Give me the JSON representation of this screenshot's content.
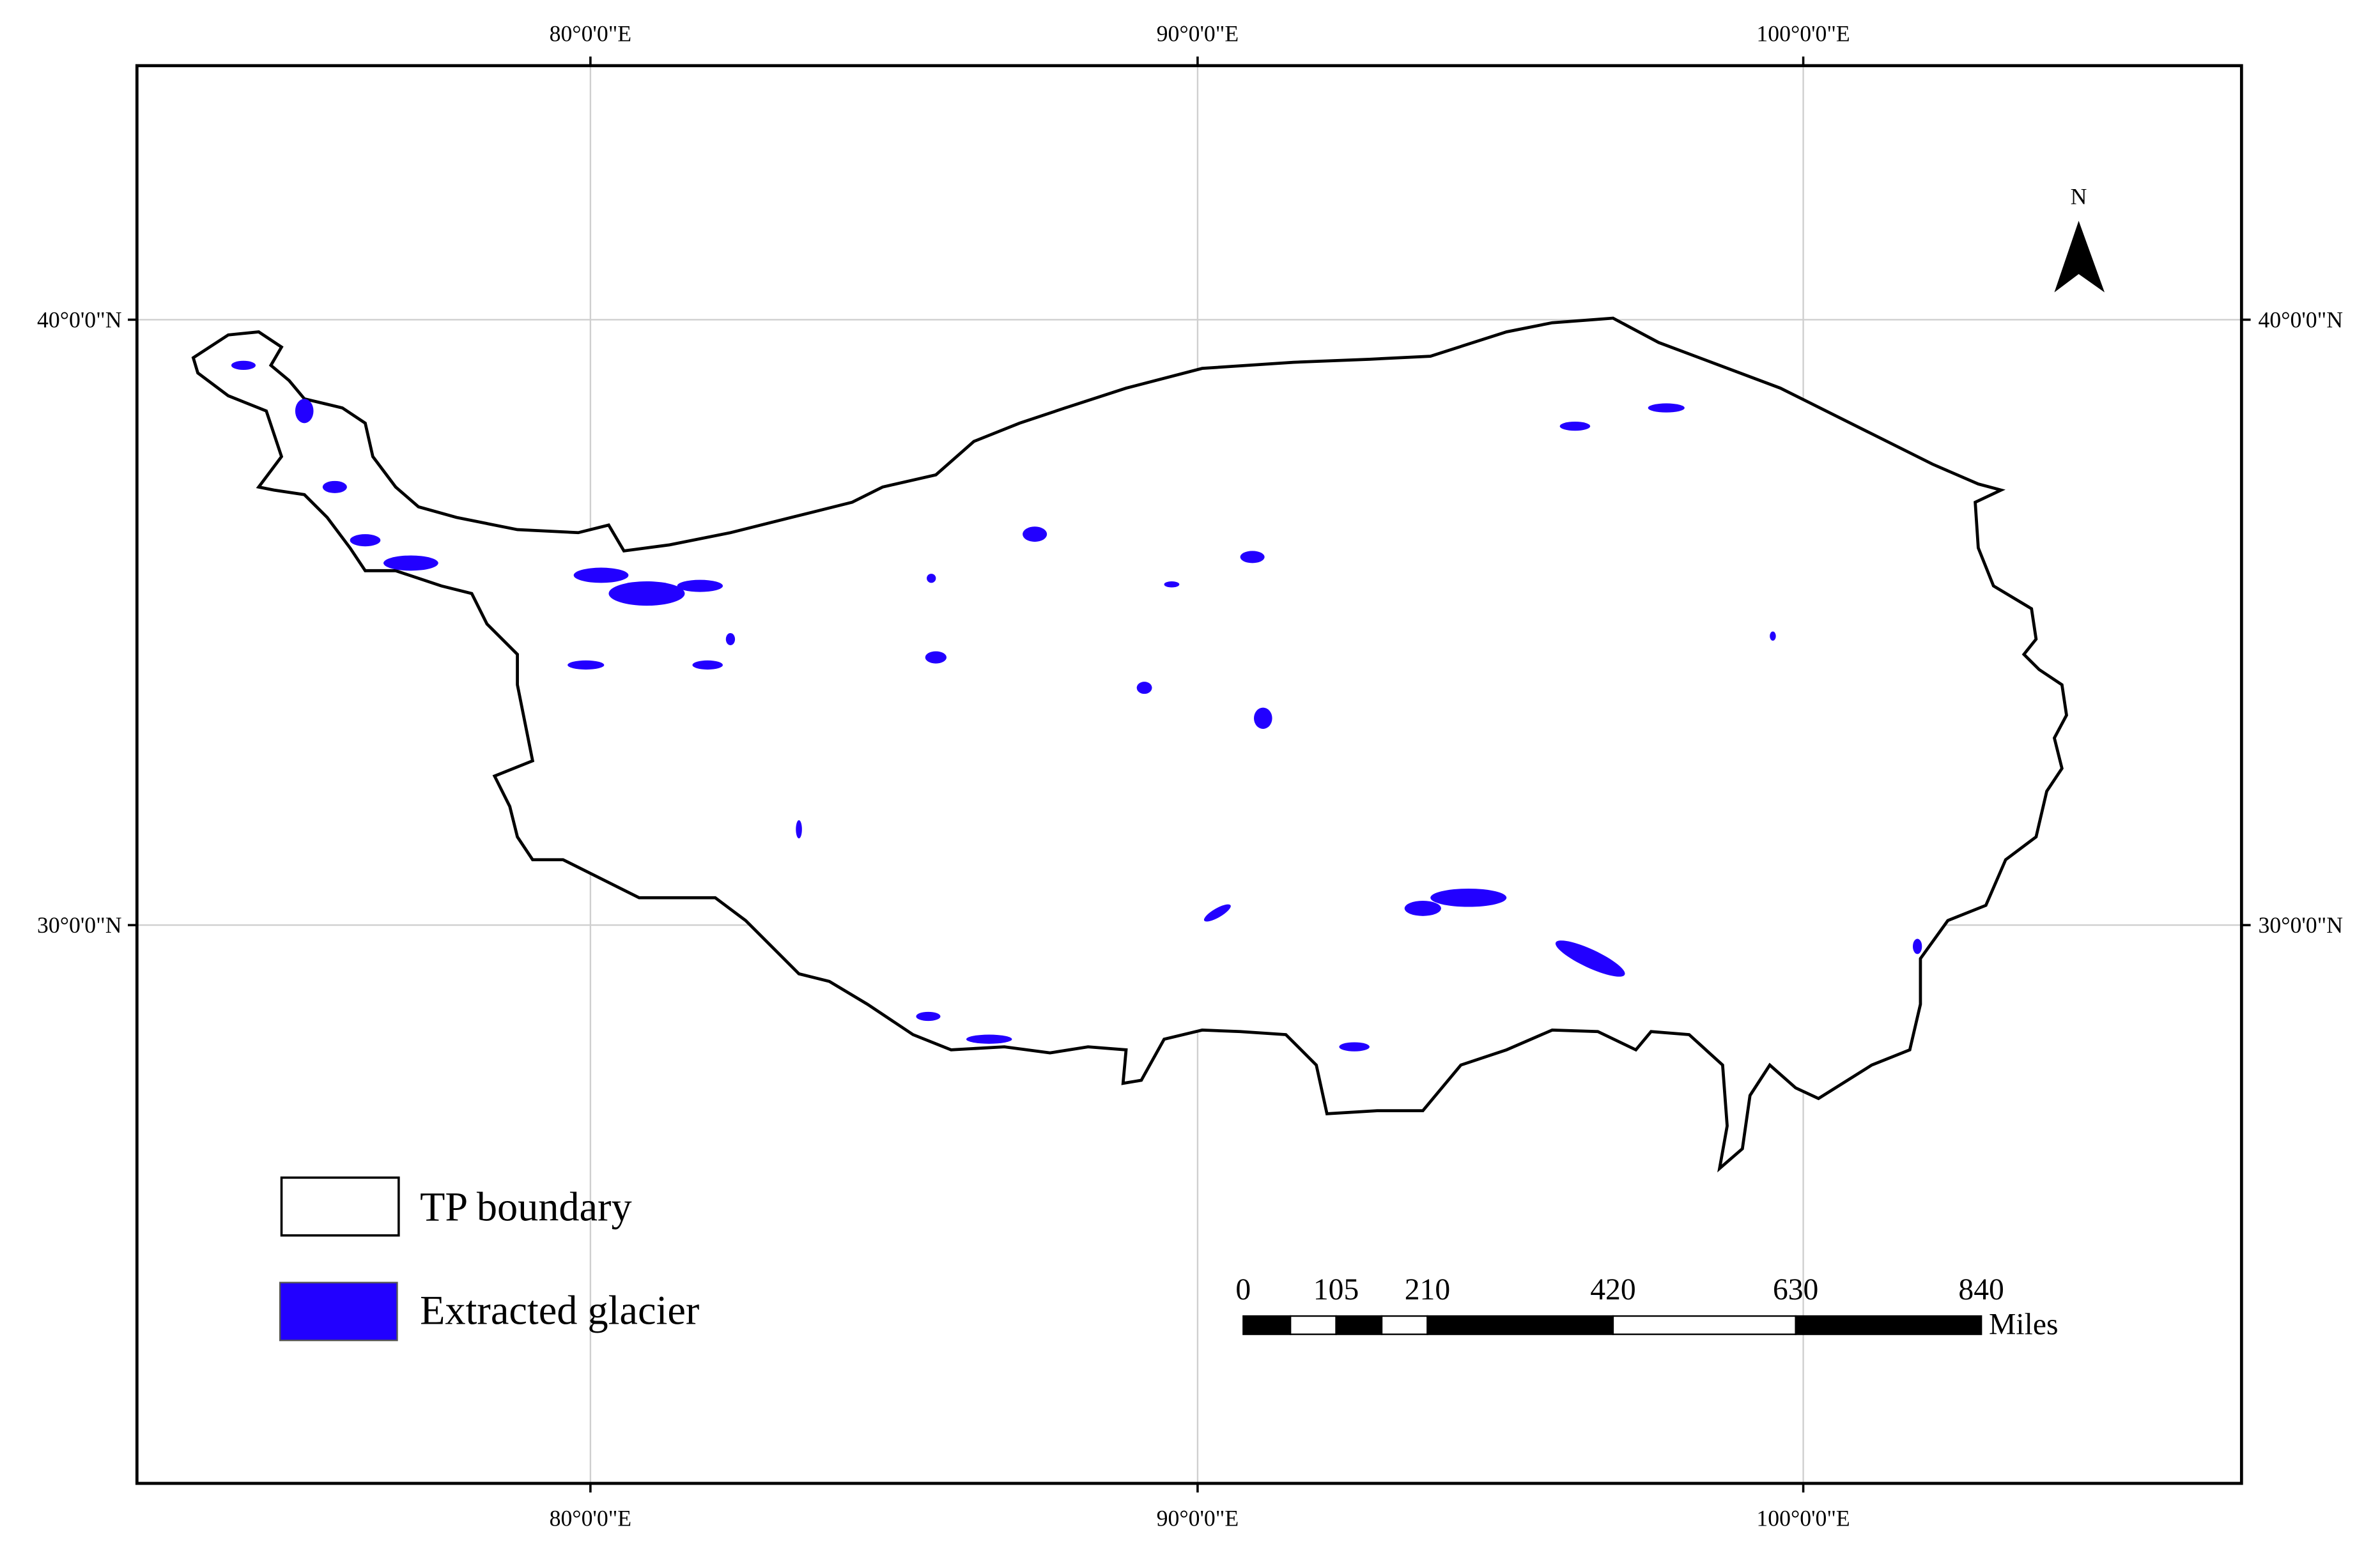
{
  "map": {
    "top_labels": [
      "80°0'0\"E",
      "90°0'0\"E",
      "100°0'0\"E"
    ],
    "bottom_labels": [
      "80°0'0\"E",
      "90°0'0\"E",
      "100°0'0\"E"
    ],
    "left_labels": [
      "40°0'0\"N",
      "30°0'0\"N"
    ],
    "right_labels": [
      "40°0'0\"N",
      "30°0'0\"N"
    ],
    "north": "N",
    "legend": [
      "TP boundary",
      "Extracted glacier"
    ],
    "scale_bar": {
      "labels": [
        0,
        105,
        210,
        420,
        630,
        840
      ],
      "unit": "Miles"
    }
  }
}
